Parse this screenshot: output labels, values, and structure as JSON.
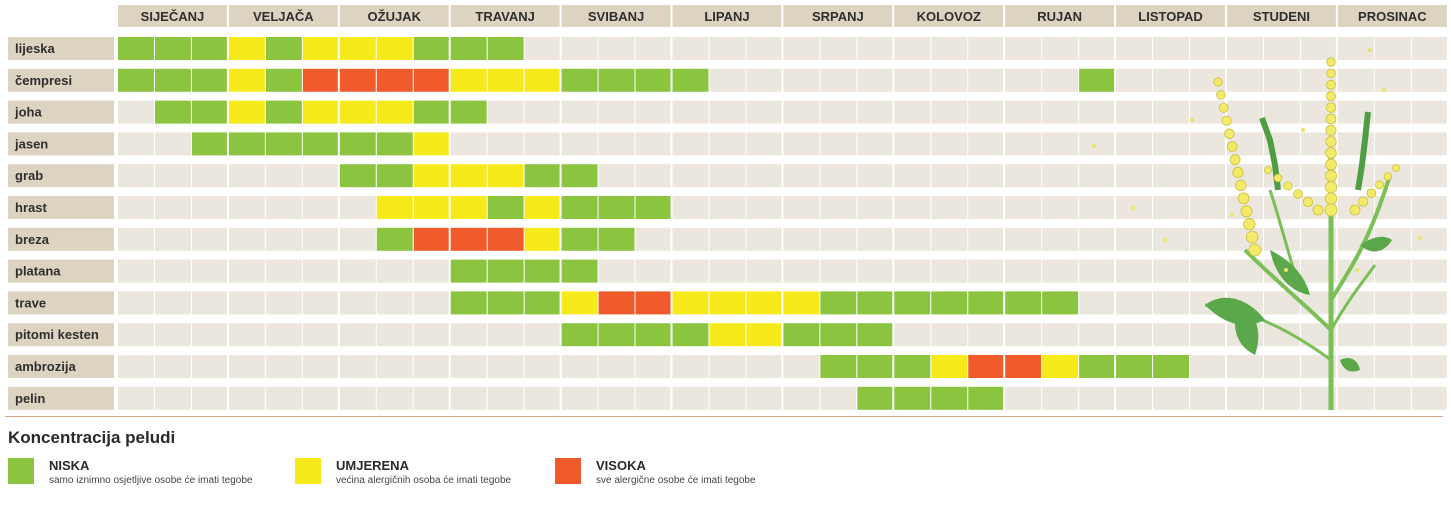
{
  "colors": {
    "low": "#8bc540",
    "moderate": "#f7ea1a",
    "high": "#f15a2b",
    "empty": "#ebe7de",
    "header": "#ddd3c1",
    "row_label_bg": "#ddd3c1"
  },
  "chart_data": {
    "type": "heatmap",
    "title": "",
    "months": [
      "SIJEČANJ",
      "VELJAČA",
      "OŽUJAK",
      "TRAVANJ",
      "SVIBANJ",
      "LIPANJ",
      "SRPANJ",
      "KOLOVOZ",
      "RUJAN",
      "LISTOPAD",
      "STUDENI",
      "PROSINAC"
    ],
    "subdivisions_per_month": 3,
    "levels": {
      "0": "none",
      "1": "niska",
      "2": "umjerena",
      "3": "visoka"
    },
    "rows": [
      {
        "name": "lijeska",
        "values": [
          1,
          1,
          1,
          2,
          1,
          2,
          2,
          2,
          1,
          1,
          1,
          0,
          0,
          0,
          0,
          0,
          0,
          0,
          0,
          0,
          0,
          0,
          0,
          0,
          0,
          0,
          0,
          0,
          0,
          0,
          0,
          0,
          0,
          0,
          0,
          0
        ]
      },
      {
        "name": "čempresi",
        "values": [
          1,
          1,
          1,
          2,
          1,
          3,
          3,
          3,
          3,
          2,
          2,
          2,
          1,
          1,
          1,
          1,
          0,
          0,
          0,
          0,
          0,
          0,
          0,
          0,
          0,
          0,
          1,
          0,
          0,
          0,
          0,
          0,
          0,
          0,
          0,
          0
        ]
      },
      {
        "name": "joha",
        "values": [
          0,
          1,
          1,
          2,
          1,
          2,
          2,
          2,
          1,
          1,
          0,
          0,
          0,
          0,
          0,
          0,
          0,
          0,
          0,
          0,
          0,
          0,
          0,
          0,
          0,
          0,
          0,
          0,
          0,
          0,
          0,
          0,
          0,
          0,
          0,
          0
        ]
      },
      {
        "name": "jasen",
        "values": [
          0,
          0,
          1,
          1,
          1,
          1,
          1,
          1,
          2,
          0,
          0,
          0,
          0,
          0,
          0,
          0,
          0,
          0,
          0,
          0,
          0,
          0,
          0,
          0,
          0,
          0,
          0,
          0,
          0,
          0,
          0,
          0,
          0,
          0,
          0,
          0
        ]
      },
      {
        "name": "grab",
        "values": [
          0,
          0,
          0,
          0,
          0,
          0,
          1,
          1,
          2,
          2,
          2,
          1,
          1,
          0,
          0,
          0,
          0,
          0,
          0,
          0,
          0,
          0,
          0,
          0,
          0,
          0,
          0,
          0,
          0,
          0,
          0,
          0,
          0,
          0,
          0,
          0
        ]
      },
      {
        "name": "hrast",
        "values": [
          0,
          0,
          0,
          0,
          0,
          0,
          0,
          2,
          2,
          2,
          1,
          2,
          1,
          1,
          1,
          0,
          0,
          0,
          0,
          0,
          0,
          0,
          0,
          0,
          0,
          0,
          0,
          0,
          0,
          0,
          0,
          0,
          0,
          0,
          0,
          0
        ]
      },
      {
        "name": "breza",
        "values": [
          0,
          0,
          0,
          0,
          0,
          0,
          0,
          1,
          3,
          3,
          3,
          2,
          1,
          1,
          0,
          0,
          0,
          0,
          0,
          0,
          0,
          0,
          0,
          0,
          0,
          0,
          0,
          0,
          0,
          0,
          0,
          0,
          0,
          0,
          0,
          0
        ]
      },
      {
        "name": "platana",
        "values": [
          0,
          0,
          0,
          0,
          0,
          0,
          0,
          0,
          0,
          1,
          1,
          1,
          1,
          0,
          0,
          0,
          0,
          0,
          0,
          0,
          0,
          0,
          0,
          0,
          0,
          0,
          0,
          0,
          0,
          0,
          0,
          0,
          0,
          0,
          0,
          0
        ]
      },
      {
        "name": "trave",
        "values": [
          0,
          0,
          0,
          0,
          0,
          0,
          0,
          0,
          0,
          1,
          1,
          1,
          2,
          3,
          3,
          2,
          2,
          2,
          2,
          1,
          1,
          1,
          1,
          1,
          1,
          1,
          0,
          0,
          0,
          0,
          0,
          0,
          0,
          0,
          0,
          0
        ]
      },
      {
        "name": "pitomi kesten",
        "values": [
          0,
          0,
          0,
          0,
          0,
          0,
          0,
          0,
          0,
          0,
          0,
          0,
          1,
          1,
          1,
          1,
          2,
          2,
          1,
          1,
          1,
          0,
          0,
          0,
          0,
          0,
          0,
          0,
          0,
          0,
          0,
          0,
          0,
          0,
          0,
          0
        ]
      },
      {
        "name": "ambrozija",
        "values": [
          0,
          0,
          0,
          0,
          0,
          0,
          0,
          0,
          0,
          0,
          0,
          0,
          0,
          0,
          0,
          0,
          0,
          0,
          0,
          1,
          1,
          1,
          2,
          3,
          3,
          2,
          1,
          1,
          1,
          0,
          0,
          0,
          0,
          0,
          0,
          0
        ]
      },
      {
        "name": "pelin",
        "values": [
          0,
          0,
          0,
          0,
          0,
          0,
          0,
          0,
          0,
          0,
          0,
          0,
          0,
          0,
          0,
          0,
          0,
          0,
          0,
          0,
          1,
          1,
          1,
          1,
          0,
          0,
          0,
          0,
          0,
          0,
          0,
          0,
          0,
          0,
          0,
          0
        ]
      }
    ]
  },
  "legend": {
    "title": "Koncentracija peludi",
    "items": [
      {
        "key": "low",
        "name": "NISKA",
        "desc": "samo iznimno osjetljive osobe će imati tegobe"
      },
      {
        "key": "moderate",
        "name": "UMJERENA",
        "desc": "većina  alergičnih osoba će imati tegobe"
      },
      {
        "key": "high",
        "name": "VISOKA",
        "desc": "sve  alergične osobe će imati tegobe"
      }
    ]
  },
  "illustration": {
    "icon": "ragweed-plant-icon"
  }
}
